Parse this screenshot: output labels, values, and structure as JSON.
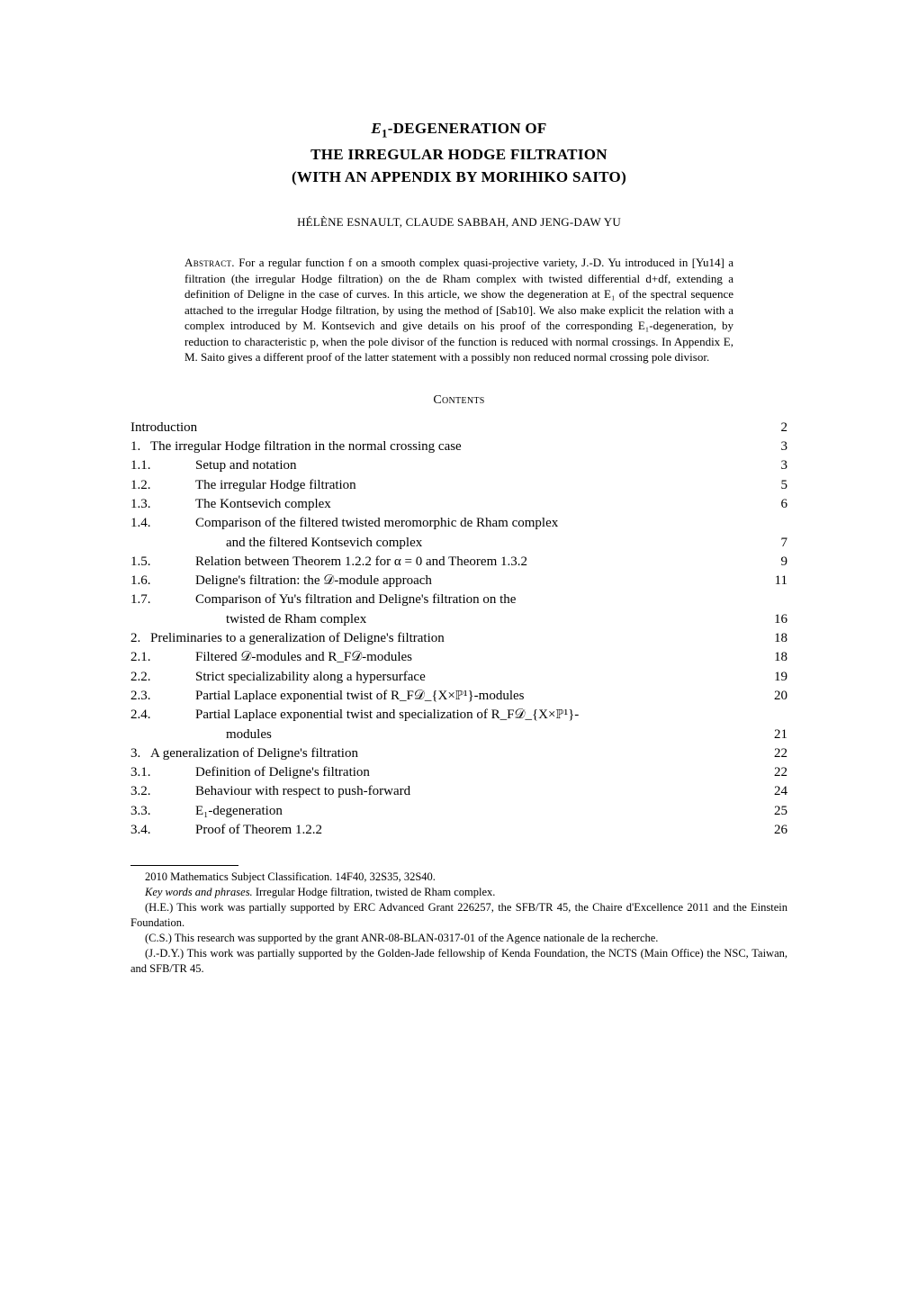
{
  "title": {
    "line1": "E₁-DEGENERATION OF",
    "line2": "THE IRREGULAR HODGE FILTRATION",
    "line3": "(WITH AN APPENDIX BY MORIHIKO SAITO)"
  },
  "authors": "HÉLÈNE ESNAULT, CLAUDE SABBAH, AND JENG-DAW YU",
  "abstract": {
    "label": "Abstract.",
    "text": "For a regular function f on a smooth complex quasi-projective variety, J.-D. Yu introduced in [Yu14] a filtration (the irregular Hodge filtration) on the de Rham complex with twisted differential d+df, extending a definition of Deligne in the case of curves. In this article, we show the degeneration at E₁ of the spectral sequence attached to the irregular Hodge filtration, by using the method of [Sab10]. We also make explicit the relation with a complex introduced by M. Kontsevich and give details on his proof of the corresponding E₁-degeneration, by reduction to characteristic p, when the pole divisor of the function is reduced with normal crossings. In Appendix E, M. Saito gives a different proof of the latter statement with a possibly non reduced normal crossing pole divisor."
  },
  "contents_header": "Contents",
  "toc": [
    {
      "level": 0,
      "num": "",
      "label": "Introduction",
      "page": "2"
    },
    {
      "level": 1,
      "num": "1.",
      "label": "The irregular Hodge filtration in the normal crossing case",
      "page": "3"
    },
    {
      "level": 2,
      "num": "1.1.",
      "label": "Setup and notation",
      "page": "3"
    },
    {
      "level": 2,
      "num": "1.2.",
      "label": "The irregular Hodge filtration",
      "page": "5"
    },
    {
      "level": 2,
      "num": "1.3.",
      "label": "The Kontsevich complex",
      "page": "6"
    },
    {
      "level": 2,
      "num": "1.4.",
      "label": "Comparison of the filtered twisted meromorphic de Rham complex",
      "cont": "and the filtered Kontsevich complex",
      "page": "7"
    },
    {
      "level": 2,
      "num": "1.5.",
      "label": "Relation between Theorem 1.2.2 for α = 0 and Theorem 1.3.2",
      "page": "9"
    },
    {
      "level": 2,
      "num": "1.6.",
      "label": "Deligne's filtration: the 𝒟-module approach",
      "page": "11"
    },
    {
      "level": 2,
      "num": "1.7.",
      "label": "Comparison of Yu's filtration and Deligne's filtration on the",
      "cont": "twisted de Rham complex",
      "page": "16"
    },
    {
      "level": 1,
      "num": "2.",
      "label": "Preliminaries to a generalization of Deligne's filtration",
      "page": "18"
    },
    {
      "level": 2,
      "num": "2.1.",
      "label": "Filtered 𝒟-modules and R_F𝒟-modules",
      "page": "18"
    },
    {
      "level": 2,
      "num": "2.2.",
      "label": "Strict specializability along a hypersurface",
      "page": "19"
    },
    {
      "level": 2,
      "num": "2.3.",
      "label": "Partial Laplace exponential twist of R_F𝒟_{X×ℙ¹}-modules",
      "page": "20"
    },
    {
      "level": 2,
      "num": "2.4.",
      "label": "Partial Laplace exponential twist and specialization of R_F𝒟_{X×ℙ¹}-",
      "cont": "modules",
      "page": "21"
    },
    {
      "level": 1,
      "num": "3.",
      "label": "A generalization of Deligne's filtration",
      "page": "22"
    },
    {
      "level": 2,
      "num": "3.1.",
      "label": "Definition of Deligne's filtration",
      "page": "22"
    },
    {
      "level": 2,
      "num": "3.2.",
      "label": "Behaviour with respect to push-forward",
      "page": "24"
    },
    {
      "level": 2,
      "num": "3.3.",
      "label": "E₁-degeneration",
      "page": "25"
    },
    {
      "level": 2,
      "num": "3.4.",
      "label": "Proof of Theorem 1.2.2",
      "page": "26"
    }
  ],
  "footnotes": {
    "msc_label": "2010 Mathematics Subject Classification.",
    "msc": " 14F40, 32S35, 32S40.",
    "kw_label": "Key words and phrases.",
    "kw": " Irregular Hodge filtration, twisted de Rham complex.",
    "f1": "(H.E.) This work was partially supported by ERC Advanced Grant 226257, the SFB/TR 45, the Chaire d'Excellence 2011 and the Einstein Foundation.",
    "f2": "(C.S.) This research was supported by the grant ANR-08-BLAN-0317-01 of the Agence nationale de la recherche.",
    "f3": "(J.-D.Y.) This work was partially supported by the Golden-Jade fellowship of Kenda Foundation, the NCTS (Main Office) the NSC, Taiwan, and SFB/TR 45."
  }
}
